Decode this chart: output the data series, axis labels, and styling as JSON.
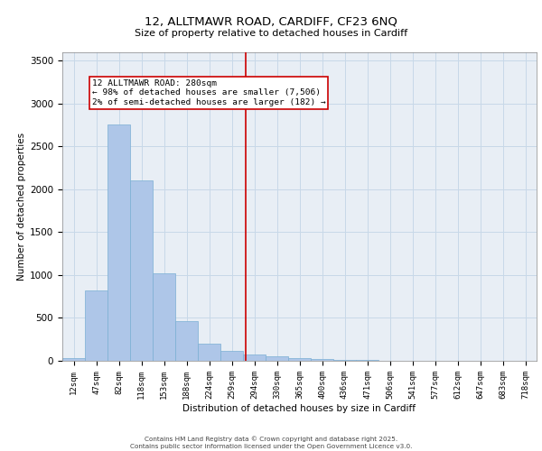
{
  "title_line1": "12, ALLTMAWR ROAD, CARDIFF, CF23 6NQ",
  "title_line2": "Size of property relative to detached houses in Cardiff",
  "xlabel": "Distribution of detached houses by size in Cardiff",
  "ylabel": "Number of detached properties",
  "categories": [
    "12sqm",
    "47sqm",
    "82sqm",
    "118sqm",
    "153sqm",
    "188sqm",
    "224sqm",
    "259sqm",
    "294sqm",
    "330sqm",
    "365sqm",
    "400sqm",
    "436sqm",
    "471sqm",
    "506sqm",
    "541sqm",
    "577sqm",
    "612sqm",
    "647sqm",
    "683sqm",
    "718sqm"
  ],
  "values": [
    30,
    820,
    2750,
    2100,
    1020,
    460,
    200,
    115,
    75,
    50,
    35,
    20,
    10,
    8,
    5,
    3,
    2,
    1,
    1,
    0,
    0
  ],
  "bar_color": "#aec6e8",
  "bar_edgecolor": "#7aafd4",
  "vline_x": 7.62,
  "vline_color": "#cc0000",
  "annotation_text": "12 ALLTMAWR ROAD: 280sqm\n← 98% of detached houses are smaller (7,506)\n2% of semi-detached houses are larger (182) →",
  "annotation_box_color": "#cc0000",
  "annotation_ix": 0.8,
  "annotation_iy": 3280,
  "ylim": [
    0,
    3600
  ],
  "yticks": [
    0,
    500,
    1000,
    1500,
    2000,
    2500,
    3000,
    3500
  ],
  "grid_color": "#c8d8e8",
  "bg_color": "#e8eef5",
  "footer_line1": "Contains HM Land Registry data © Crown copyright and database right 2025.",
  "footer_line2": "Contains public sector information licensed under the Open Government Licence v3.0."
}
